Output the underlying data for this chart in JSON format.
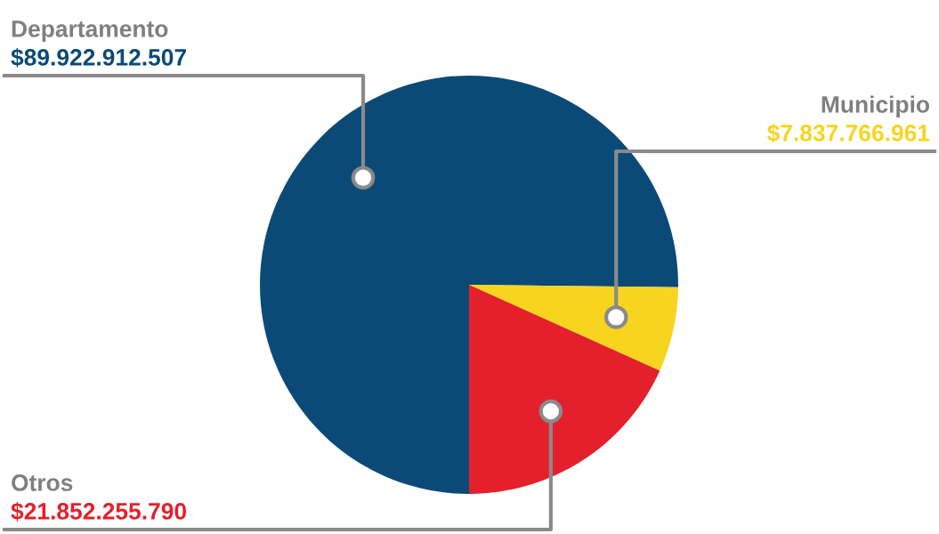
{
  "chart_data": {
    "type": "pie",
    "categories": [
      "Departamento",
      "Municipio",
      "Otros"
    ],
    "values": [
      89922912507,
      7837766961,
      21852255790
    ],
    "colors": [
      "#0b4a76",
      "#f7d51e",
      "#e3202b"
    ],
    "value_labels": [
      "$89.922.912.507",
      "$7.837.766.961",
      "$21.852.255.790"
    ]
  }
}
